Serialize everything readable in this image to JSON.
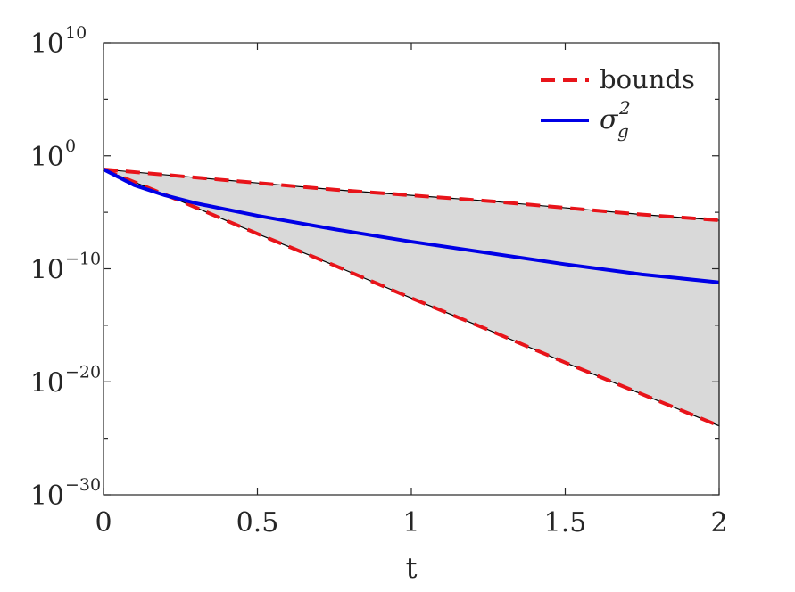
{
  "chart_data": {
    "type": "line",
    "title": "",
    "xlabel": "t",
    "ylabel": "",
    "xlim": [
      0,
      2
    ],
    "ylim_exponent": [
      -30,
      10
    ],
    "yscale": "log",
    "x_ticks": [
      {
        "value": 0,
        "label": "0"
      },
      {
        "value": 0.5,
        "label": "0.5"
      },
      {
        "value": 1,
        "label": "1"
      },
      {
        "value": 1.5,
        "label": "1.5"
      },
      {
        "value": 2,
        "label": "2"
      }
    ],
    "y_ticks": [
      {
        "exponent": 10,
        "base": "10",
        "power": "10"
      },
      {
        "exponent": 0,
        "base": "10",
        "power": "0"
      },
      {
        "exponent": -10,
        "base": "10",
        "power": "−10"
      },
      {
        "exponent": -20,
        "base": "10",
        "power": "−20"
      },
      {
        "exponent": -30,
        "base": "10",
        "power": "−30"
      }
    ],
    "y_minor_exponents": [
      5,
      -5,
      -15,
      -25
    ],
    "grid": false,
    "legend_position": "top-right",
    "shaded_region": {
      "between": [
        "upper bound",
        "lower bound"
      ],
      "color": "#d9d9d9"
    },
    "series": [
      {
        "name": "bounds",
        "legend_label": "bounds",
        "style": "dashed",
        "color": "#e8141a",
        "kind": "upper",
        "x": [
          0,
          0.25,
          0.5,
          0.75,
          1,
          1.25,
          1.5,
          1.75,
          2
        ],
        "log10_y": [
          -1.2,
          -1.8,
          -2.4,
          -3.0,
          -3.5,
          -4.0,
          -4.6,
          -5.2,
          -5.7
        ]
      },
      {
        "name": "bounds",
        "legend_label": "",
        "style": "dashed",
        "color": "#e8141a",
        "kind": "lower",
        "x": [
          0,
          0.25,
          0.5,
          0.75,
          1,
          1.25,
          1.5,
          1.75,
          2
        ],
        "log10_y": [
          -1.2,
          -4.0,
          -6.9,
          -9.7,
          -12.6,
          -15.4,
          -18.3,
          -21.1,
          -23.9
        ]
      },
      {
        "name": "sigma_g^2",
        "legend_symbol": "σ",
        "legend_sub": "g",
        "legend_sup": "2",
        "style": "solid",
        "color": "#0000e6",
        "x": [
          0,
          0.1,
          0.2,
          0.3,
          0.5,
          0.75,
          1,
          1.25,
          1.5,
          1.75,
          2
        ],
        "log10_y": [
          -1.2,
          -2.6,
          -3.5,
          -4.2,
          -5.3,
          -6.5,
          -7.6,
          -8.6,
          -9.6,
          -10.5,
          -11.2
        ]
      }
    ]
  }
}
